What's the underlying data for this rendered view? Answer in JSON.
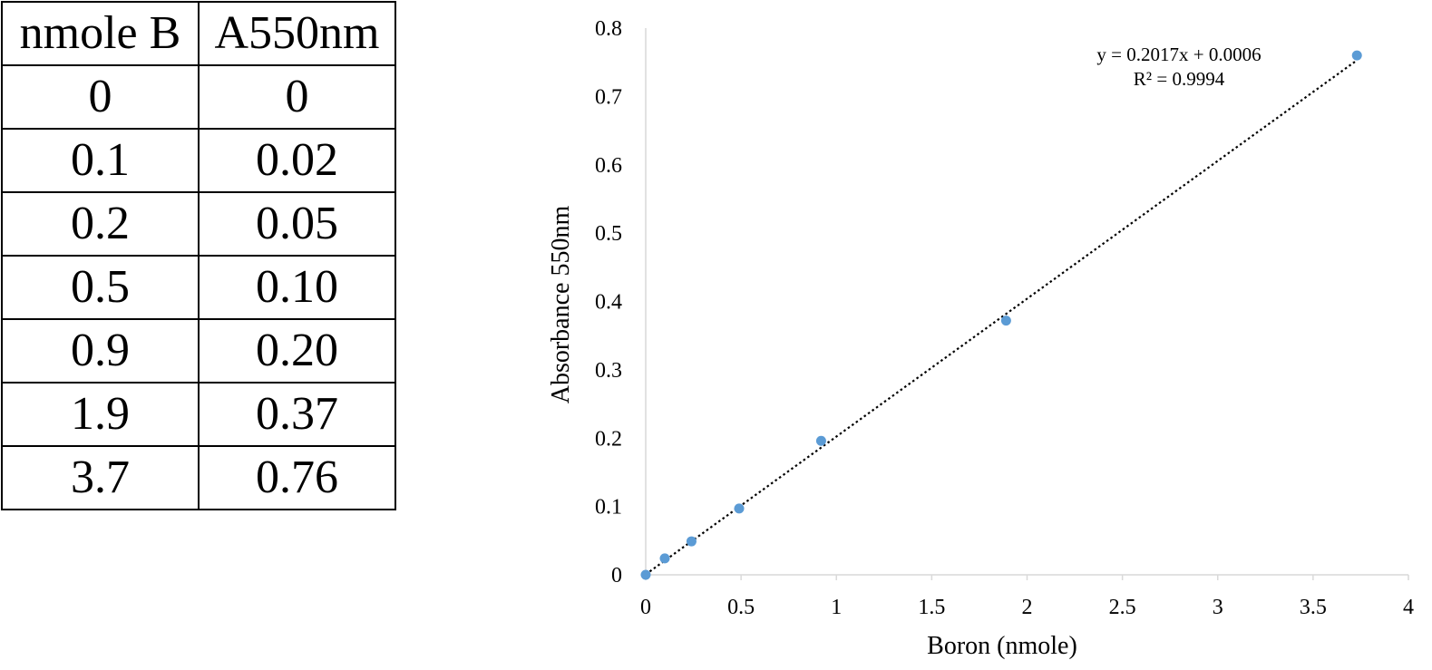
{
  "table": {
    "headers": [
      "nmole B",
      "A550nm"
    ],
    "rows": [
      [
        "0",
        "0"
      ],
      [
        "0.1",
        "0.02"
      ],
      [
        "0.2",
        "0.05"
      ],
      [
        "0.5",
        "0.10"
      ],
      [
        "0.9",
        "0.20"
      ],
      [
        "1.9",
        "0.37"
      ],
      [
        "3.7",
        "0.76"
      ]
    ]
  },
  "chart_data": {
    "type": "scatter",
    "title": "",
    "xlabel": "Boron (nmole)",
    "ylabel": "Absorbance 550nm",
    "xlim": [
      0,
      4
    ],
    "ylim": [
      0,
      0.8
    ],
    "xticks": [
      "0",
      "0.5",
      "1",
      "1.5",
      "2",
      "2.5",
      "3",
      "3.5",
      "4"
    ],
    "yticks": [
      "0",
      "0.1",
      "0.2",
      "0.3",
      "0.4",
      "0.5",
      "0.6",
      "0.7",
      "0.8"
    ],
    "series": [
      {
        "name": "A550nm",
        "color": "#5b9bd5",
        "points": [
          {
            "x": 0,
            "y": 0
          },
          {
            "x": 0.1,
            "y": 0.024
          },
          {
            "x": 0.24,
            "y": 0.049
          },
          {
            "x": 0.49,
            "y": 0.097
          },
          {
            "x": 0.92,
            "y": 0.196
          },
          {
            "x": 1.89,
            "y": 0.372
          },
          {
            "x": 3.73,
            "y": 0.76
          }
        ]
      }
    ],
    "trendline": {
      "type": "linear",
      "slope": 0.2017,
      "intercept": 0.0006,
      "equation": "y = 0.2017x + 0.0006",
      "r_squared": "R² = 0.9994",
      "color": "#000000"
    },
    "grid": false,
    "legend": "none"
  }
}
